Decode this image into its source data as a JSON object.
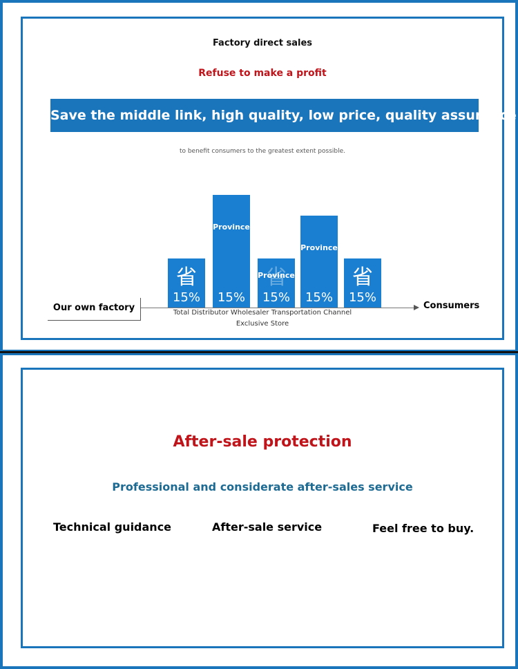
{
  "panel1": {
    "title": "Factory direct sales",
    "subtitle": "Refuse to make a profit",
    "banner": "Save the middle link, high quality, low price, quality assurance",
    "note": "to benefit consumers to the greatest extent possible.",
    "diagram": {
      "start": "Our own factory",
      "end": "Consumers",
      "blocks": [
        {
          "glyph": "省",
          "percent": "15%"
        },
        {
          "word": "Province",
          "percent": "15%"
        },
        {
          "glyph": "省",
          "word": "Province",
          "percent": "15%"
        },
        {
          "word": "Province",
          "percent": "15%"
        },
        {
          "glyph": "省",
          "percent": "15%"
        }
      ],
      "caption": [
        "Total Distributor Wholesaler Transportation Channel",
        "Exclusive Store"
      ]
    }
  },
  "panel2": {
    "title": "After-sale protection",
    "subtitle": "Professional and considerate after-sales service",
    "items": [
      "Technical guidance",
      "After-sale service",
      "Feel free to buy."
    ]
  }
}
